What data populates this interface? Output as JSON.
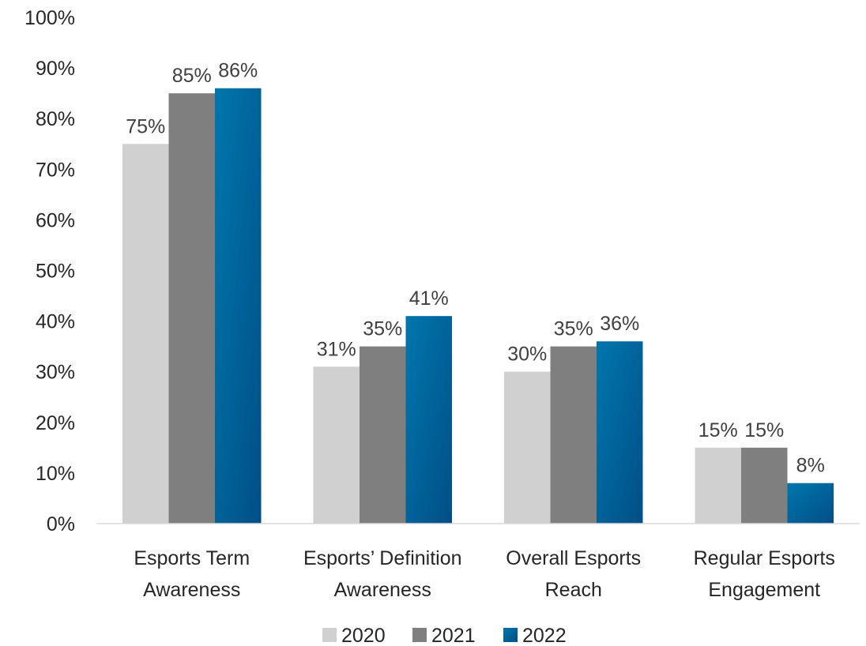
{
  "chart_data": {
    "type": "bar",
    "title": "",
    "xlabel": "",
    "ylabel": "",
    "ylim": [
      0,
      100
    ],
    "y_ticks": [
      "0%",
      "10%",
      "20%",
      "30%",
      "40%",
      "50%",
      "60%",
      "70%",
      "80%",
      "90%",
      "100%"
    ],
    "y_tick_values": [
      0,
      10,
      20,
      30,
      40,
      50,
      60,
      70,
      80,
      90,
      100
    ],
    "grid": false,
    "legend_position": "bottom",
    "categories": [
      [
        "Esports Term",
        "Awareness"
      ],
      [
        "Esports’ Definition",
        "Awareness"
      ],
      [
        "Overall Esports",
        "Reach"
      ],
      [
        "Regular Esports",
        "Engagement"
      ]
    ],
    "series": [
      {
        "name": "2020",
        "color": "#d0d0d0",
        "values": [
          75,
          31,
          30,
          15
        ],
        "labels": [
          "75%",
          "31%",
          "30%",
          "15%"
        ]
      },
      {
        "name": "2021",
        "color": "#7f7f7f",
        "values": [
          85,
          35,
          35,
          15
        ],
        "labels": [
          "85%",
          "35%",
          "35%",
          "15%"
        ]
      },
      {
        "name": "2022",
        "color": "#0a6a9e",
        "gradient": [
          "#0077ad",
          "#004f86"
        ],
        "values": [
          86,
          41,
          36,
          8
        ],
        "labels": [
          "86%",
          "41%",
          "36%",
          "8%"
        ]
      }
    ]
  }
}
